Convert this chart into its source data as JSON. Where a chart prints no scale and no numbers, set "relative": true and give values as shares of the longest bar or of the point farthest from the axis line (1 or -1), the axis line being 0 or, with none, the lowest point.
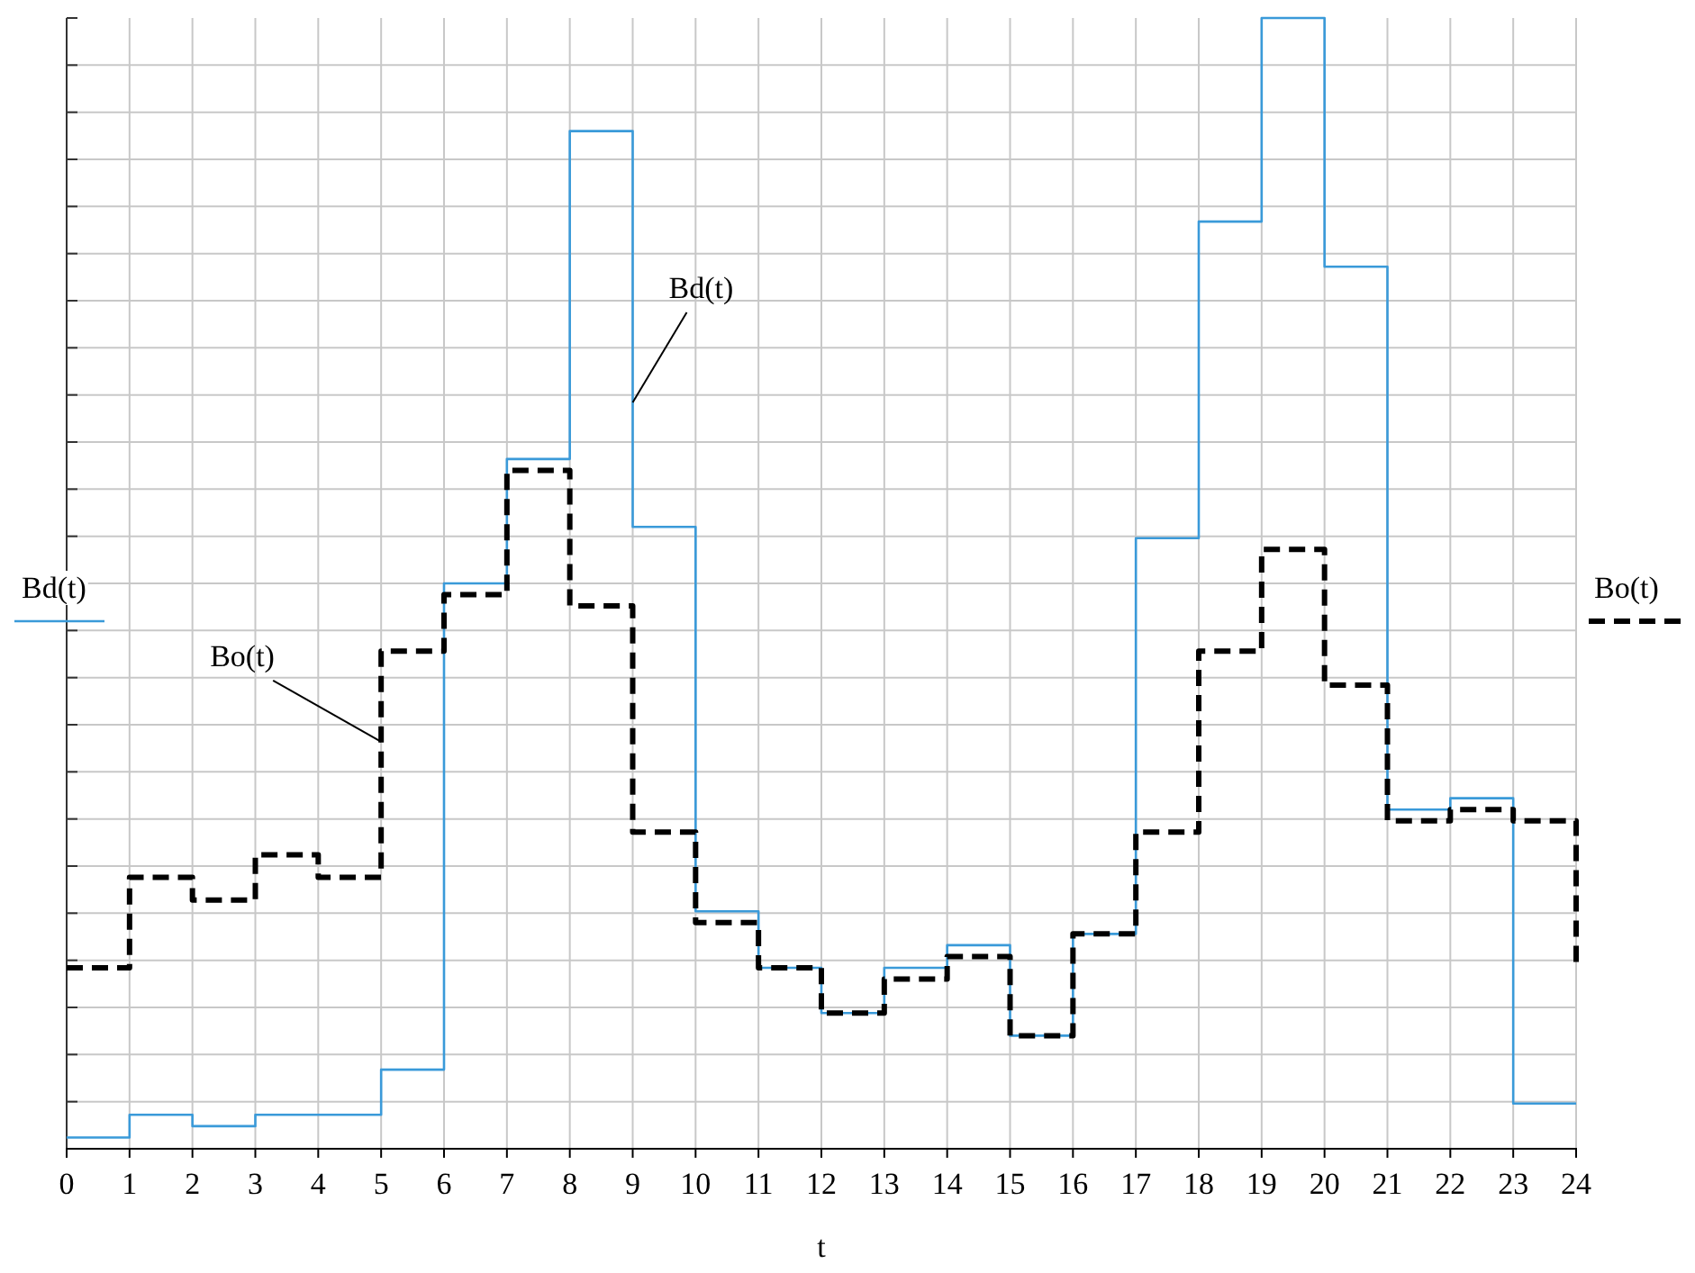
{
  "chart_data": {
    "type": "step",
    "relative": true,
    "xlabel": "t",
    "xlim": [
      0,
      24
    ],
    "xticks": [
      0,
      1,
      2,
      3,
      4,
      5,
      6,
      7,
      8,
      9,
      10,
      11,
      12,
      13,
      14,
      15,
      16,
      17,
      18,
      19,
      20,
      21,
      22,
      23,
      24
    ],
    "x": [
      0,
      1,
      2,
      3,
      4,
      5,
      6,
      7,
      8,
      9,
      10,
      11,
      12,
      13,
      14,
      15,
      16,
      17,
      18,
      19,
      20,
      21,
      22,
      23,
      24
    ],
    "grid": true,
    "legend": "left",
    "series": [
      {
        "name": "Bd(t)",
        "color": "#3a9ad9",
        "line_style": "solid",
        "values": [
          0.01,
          0.03,
          0.02,
          0.03,
          0.03,
          0.07,
          0.5,
          0.61,
          0.9,
          0.55,
          0.21,
          0.16,
          0.12,
          0.16,
          0.18,
          0.1,
          0.19,
          0.54,
          0.82,
          1,
          0.78,
          0.3,
          0.31,
          0.04,
          0.04
        ]
      },
      {
        "name": "Bo(t)",
        "color": "#000000",
        "line_style": "dashed",
        "values": [
          0.16,
          0.24,
          0.22,
          0.26,
          0.24,
          0.44,
          0.49,
          0.6,
          0.48,
          0.28,
          0.2,
          0.16,
          0.12,
          0.15,
          0.17,
          0.1,
          0.19,
          0.28,
          0.44,
          0.53,
          0.41,
          0.29,
          0.3,
          0.29,
          0.16
        ]
      }
    ],
    "annotations": [
      {
        "text": "Bd(t)",
        "x": 9,
        "y": 0.66
      },
      {
        "text": "Bo(t)",
        "x": 5,
        "y": 0.36
      }
    ]
  }
}
